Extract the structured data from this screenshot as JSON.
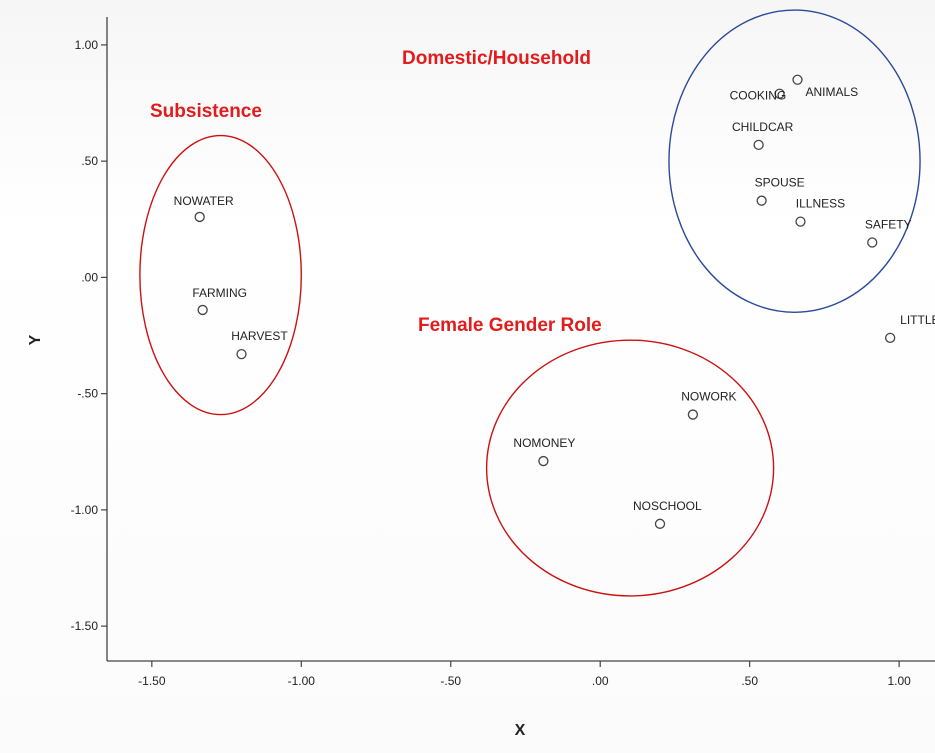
{
  "chart_data": {
    "type": "scatter",
    "title": "",
    "xlabel": "X",
    "ylabel": "Y",
    "xlim": [
      -1.65,
      1.12
    ],
    "ylim": [
      -1.65,
      1.12
    ],
    "x_ticks": [
      -1.5,
      -1.0,
      -0.5,
      0.0,
      0.5,
      1.0
    ],
    "x_tick_labels": [
      "-1.50",
      "-1.00",
      "-.50",
      ".00",
      ".50",
      "1.00"
    ],
    "y_ticks": [
      1.0,
      0.5,
      0.0,
      -0.5,
      -1.0,
      -1.5
    ],
    "y_tick_labels": [
      "1.00",
      ".50",
      ".00",
      "-.50",
      "-1.00",
      "-1.50"
    ],
    "grid": false,
    "points": [
      {
        "label": "NOWATER",
        "x": -1.34,
        "y": 0.26
      },
      {
        "label": "FARMING",
        "x": -1.33,
        "y": -0.14
      },
      {
        "label": "HARVEST",
        "x": -1.2,
        "y": -0.33
      },
      {
        "label": "COOKING",
        "x": 0.6,
        "y": 0.79
      },
      {
        "label": "ANIMALS",
        "x": 0.66,
        "y": 0.85
      },
      {
        "label": "CHILDCAR",
        "x": 0.53,
        "y": 0.57
      },
      {
        "label": "SPOUSE",
        "x": 0.54,
        "y": 0.33
      },
      {
        "label": "ILLNESS",
        "x": 0.67,
        "y": 0.24
      },
      {
        "label": "SAFETY",
        "x": 0.91,
        "y": 0.15
      },
      {
        "label": "LITTLEOP",
        "x": 0.97,
        "y": -0.26
      },
      {
        "label": "NOWORK",
        "x": 0.31,
        "y": -0.59
      },
      {
        "label": "NOMONEY",
        "x": -0.19,
        "y": -0.79
      },
      {
        "label": "NOSCHOOL",
        "x": 0.2,
        "y": -1.06
      }
    ],
    "groups": [
      {
        "label": "Subsistence",
        "color": "#cc1111",
        "cx": -1.27,
        "cy": 0.01,
        "rx": 0.27,
        "ry": 0.6
      },
      {
        "label": "Domestic/Household",
        "color": "#2a4a9a",
        "cx": 0.65,
        "cy": 0.5,
        "rx": 0.42,
        "ry": 0.65
      },
      {
        "label": "Female Gender Role",
        "color": "#cc1111",
        "cx": 0.1,
        "cy": -0.82,
        "rx": 0.48,
        "ry": 0.55
      }
    ],
    "colors": {
      "group_text": "#e11c1c",
      "axis": "#444444",
      "marker": "#444444"
    }
  }
}
